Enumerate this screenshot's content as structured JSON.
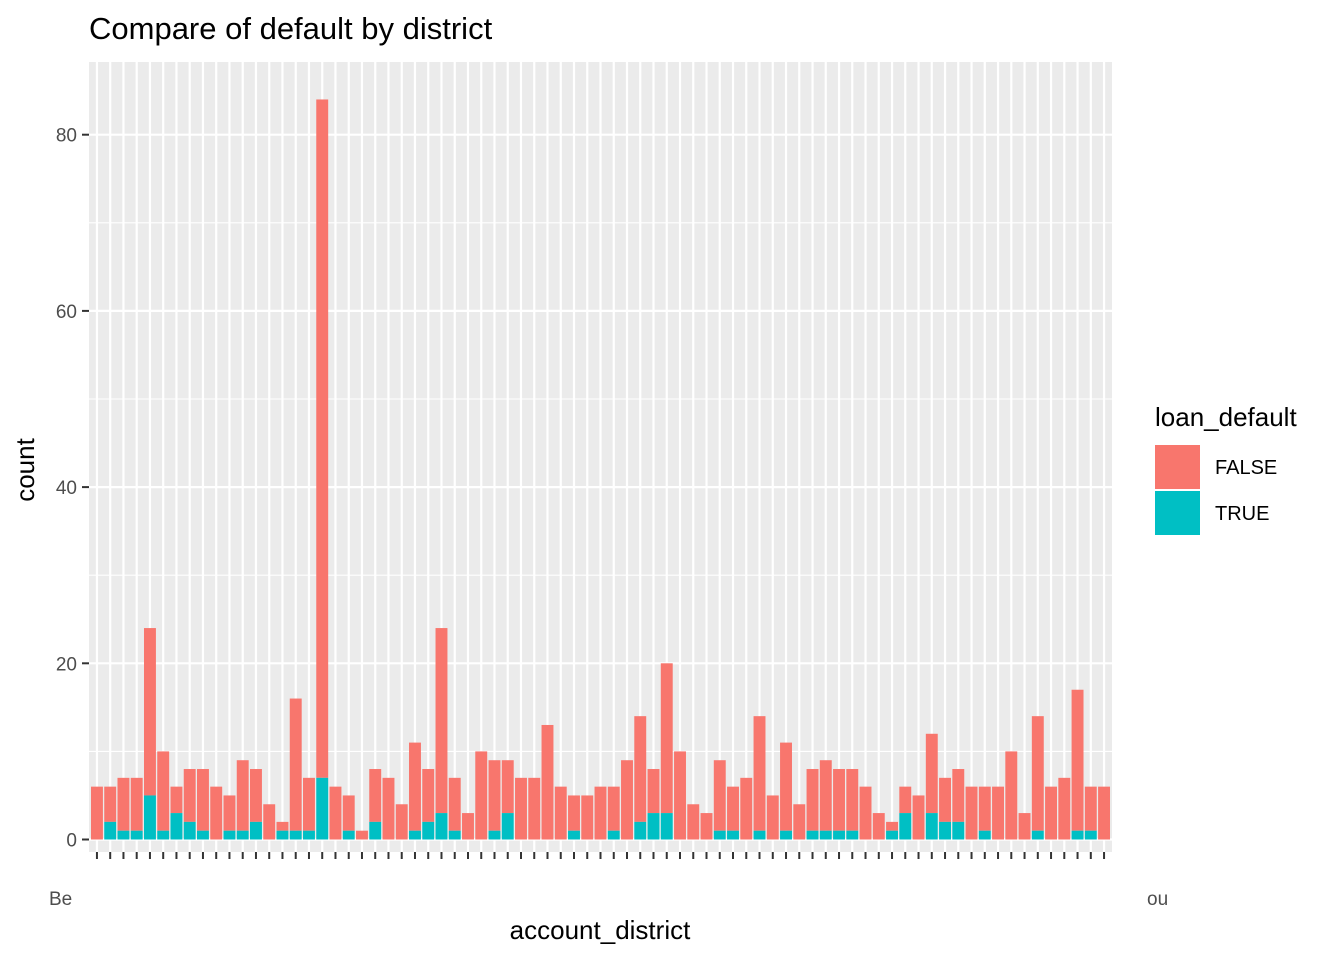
{
  "colors": {
    "panel_bg": "#EBEBEB",
    "grid": "#FFFFFF",
    "false_fill": "#F8766D",
    "true_fill": "#00BFC4",
    "tick": "#333333"
  },
  "chart_data": {
    "type": "bar",
    "stacked": true,
    "title": "Compare of default by district",
    "xlabel": "account_district",
    "ylabel": "count",
    "ylim": [
      0,
      88
    ],
    "yticks": [
      0,
      20,
      40,
      60,
      80
    ],
    "grid": true,
    "legend": {
      "title": "loan_default",
      "position": "right",
      "entries": [
        {
          "name": "FALSE",
          "color": "#F8766D"
        },
        {
          "name": "TRUE",
          "color": "#00BFC4"
        }
      ]
    },
    "first_tick_label": "Be",
    "last_tick_label": "ou",
    "category_count": 77,
    "series": [
      {
        "name": "FALSE",
        "values": [
          6,
          4,
          6,
          6,
          19,
          9,
          3,
          6,
          7,
          6,
          4,
          8,
          6,
          4,
          1,
          15,
          6,
          77,
          6,
          4,
          1,
          6,
          7,
          4,
          10,
          6,
          21,
          6,
          3,
          10,
          8,
          6,
          7,
          7,
          13,
          6,
          4,
          5,
          6,
          5,
          9,
          12,
          5,
          17,
          10,
          4,
          3,
          8,
          5,
          7,
          13,
          5,
          10,
          4,
          7,
          8,
          7,
          7,
          6,
          3,
          1,
          3,
          5,
          9,
          5,
          6,
          6,
          5,
          6,
          10,
          3,
          13,
          6,
          7,
          16,
          5,
          6
        ],
        "color": "#F8766D"
      },
      {
        "name": "TRUE",
        "values": [
          0,
          2,
          1,
          1,
          5,
          1,
          3,
          2,
          1,
          0,
          1,
          1,
          2,
          0,
          1,
          1,
          1,
          7,
          0,
          1,
          0,
          2,
          0,
          0,
          1,
          2,
          3,
          1,
          0,
          0,
          1,
          3,
          0,
          0,
          0,
          0,
          1,
          0,
          0,
          1,
          0,
          2,
          3,
          3,
          0,
          0,
          0,
          1,
          1,
          0,
          1,
          0,
          1,
          0,
          1,
          1,
          1,
          1,
          0,
          0,
          1,
          3,
          0,
          3,
          2,
          2,
          0,
          1,
          0,
          0,
          0,
          1,
          0,
          0,
          1,
          1,
          0
        ],
        "color": "#00BFC4"
      }
    ]
  }
}
